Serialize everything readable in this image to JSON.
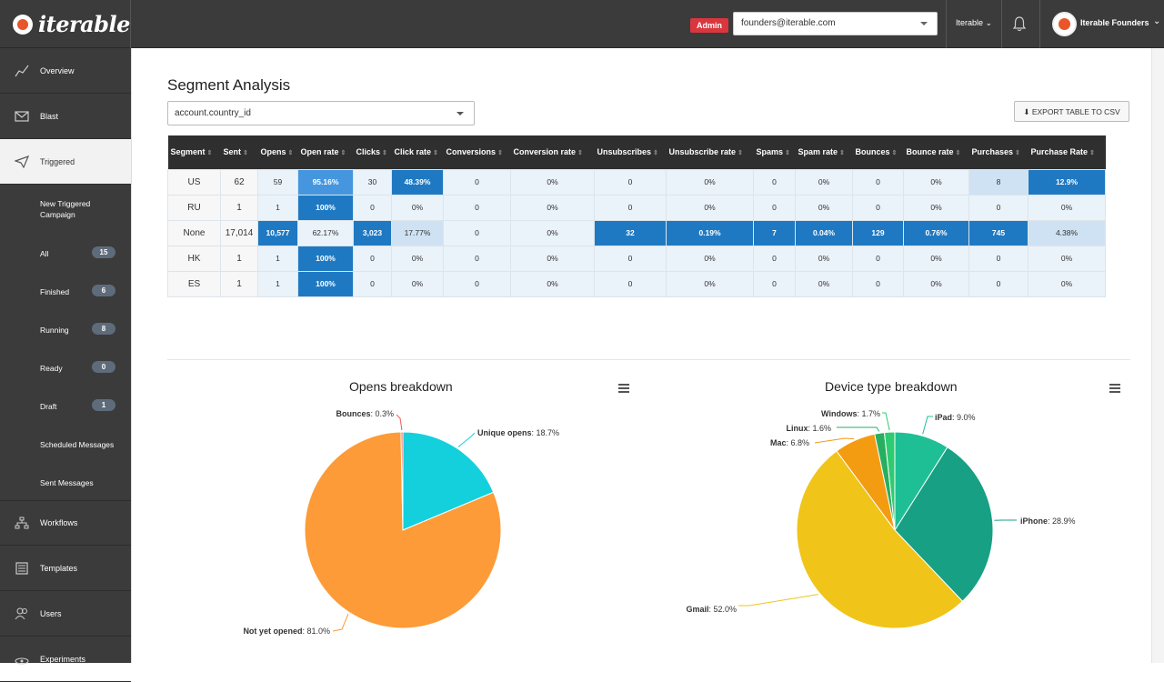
{
  "brand": {
    "name": "iterable"
  },
  "topbar": {
    "admin_badge": "Admin",
    "user_email": "founders@iterable.com",
    "org": "Iterable",
    "account": "Iterable Founders"
  },
  "sidebar": {
    "items": [
      {
        "label": "Overview"
      },
      {
        "label": "Blast"
      },
      {
        "label": "Triggered"
      },
      {
        "label": "Workflows"
      },
      {
        "label": "Templates"
      },
      {
        "label": "Users"
      },
      {
        "label": "Experiments"
      }
    ],
    "subitems": [
      {
        "label": "New Triggered Campaign"
      },
      {
        "label": "All",
        "count": "15"
      },
      {
        "label": "Finished",
        "count": "6"
      },
      {
        "label": "Running",
        "count": "8"
      },
      {
        "label": "Ready",
        "count": "0"
      },
      {
        "label": "Draft",
        "count": "1"
      },
      {
        "label": "Scheduled Messages"
      },
      {
        "label": "Sent Messages"
      }
    ]
  },
  "page": {
    "title": "Segment Analysis",
    "segment_field": "account.country_id",
    "export_label": "EXPORT TABLE TO CSV"
  },
  "table": {
    "headers": [
      "Segment",
      "Sent",
      "Opens",
      "Open rate",
      "Clicks",
      "Click rate",
      "Conversions",
      "Conversion rate",
      "Unsubscribes",
      "Unsubscribe rate",
      "Spams",
      "Spam rate",
      "Bounces",
      "Bounce rate",
      "Purchases",
      "Purchase Rate"
    ],
    "rows": [
      [
        "US",
        "62",
        "59",
        "95.16%",
        "30",
        "48.39%",
        "0",
        "0%",
        "0",
        "0%",
        "0",
        "0%",
        "0",
        "0%",
        "8",
        "12.9%"
      ],
      [
        "RU",
        "1",
        "1",
        "100%",
        "0",
        "0%",
        "0",
        "0%",
        "0",
        "0%",
        "0",
        "0%",
        "0",
        "0%",
        "0",
        "0%"
      ],
      [
        "None",
        "17,014",
        "10,577",
        "62.17%",
        "3,023",
        "17.77%",
        "0",
        "0%",
        "32",
        "0.19%",
        "7",
        "0.04%",
        "129",
        "0.76%",
        "745",
        "4.38%"
      ],
      [
        "HK",
        "1",
        "1",
        "100%",
        "0",
        "0%",
        "0",
        "0%",
        "0",
        "0%",
        "0",
        "0%",
        "0",
        "0%",
        "0",
        "0%"
      ],
      [
        "ES",
        "1",
        "1",
        "100%",
        "0",
        "0%",
        "0",
        "0%",
        "0",
        "0%",
        "0",
        "0%",
        "0",
        "0%",
        "0",
        "0%"
      ]
    ],
    "shades": [
      [
        0,
        0,
        1,
        3,
        1,
        4,
        1,
        1,
        1,
        1,
        1,
        1,
        1,
        1,
        2,
        4
      ],
      [
        0,
        0,
        1,
        4,
        1,
        1,
        1,
        1,
        1,
        1,
        1,
        1,
        1,
        1,
        1,
        1
      ],
      [
        0,
        0,
        4,
        1,
        4,
        2,
        1,
        1,
        4,
        4,
        4,
        4,
        4,
        4,
        4,
        2
      ],
      [
        0,
        0,
        1,
        4,
        1,
        1,
        1,
        1,
        1,
        1,
        1,
        1,
        1,
        1,
        1,
        1
      ],
      [
        0,
        0,
        1,
        4,
        1,
        1,
        1,
        1,
        1,
        1,
        1,
        1,
        1,
        1,
        1,
        1
      ]
    ]
  },
  "colors": {
    "shade0": "#f7f7f7",
    "shade1": "#eaf2fa",
    "shade2": "#cfe2f3",
    "shade3": "#4596de",
    "shade4": "#1f79c2"
  },
  "chart_data": [
    {
      "type": "pie",
      "title": "Opens breakdown",
      "slices": [
        {
          "label": "Unique opens",
          "value": 18.7,
          "color": "#14d0dc"
        },
        {
          "label": "Not yet opened",
          "value": 81.0,
          "color": "#fc9b38"
        },
        {
          "label": "Bounces",
          "value": 0.3,
          "color": "#ef5a5a"
        }
      ],
      "labels": [
        {
          "name": "Bounces",
          "value": "0.3%"
        },
        {
          "name": "Unique opens",
          "value": "18.7%"
        },
        {
          "name": "Not yet opened",
          "value": "81.0%"
        }
      ]
    },
    {
      "type": "pie",
      "title": "Device type breakdown",
      "slices": [
        {
          "label": "iPad",
          "value": 9.0,
          "color": "#1fbf96"
        },
        {
          "label": "iPhone",
          "value": 28.9,
          "color": "#17a084"
        },
        {
          "label": "Gmail",
          "value": 52.0,
          "color": "#f0c419"
        },
        {
          "label": "Mac",
          "value": 6.8,
          "color": "#f39c12"
        },
        {
          "label": "Linux",
          "value": 1.6,
          "color": "#27ae60"
        },
        {
          "label": "Windows",
          "value": 1.7,
          "color": "#2ecc71"
        }
      ],
      "labels": [
        {
          "name": "Windows",
          "value": "1.7%"
        },
        {
          "name": "Linux",
          "value": "1.6%"
        },
        {
          "name": "Mac",
          "value": "6.8%"
        },
        {
          "name": "iPad",
          "value": "9.0%"
        },
        {
          "name": "iPhone",
          "value": "28.9%"
        },
        {
          "name": "Gmail",
          "value": "52.0%"
        }
      ]
    }
  ]
}
